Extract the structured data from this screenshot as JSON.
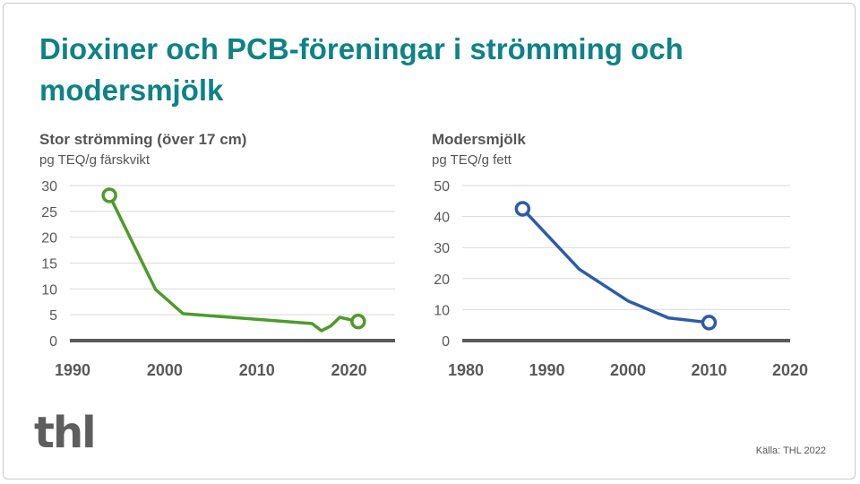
{
  "title": "Dioxiner och PCB-föreningar i strömming och modersmjölk",
  "source": "Källa: THL 2022",
  "logo_text": "thl",
  "chart_data": [
    {
      "type": "line",
      "title": "Stor strömming (över 17 cm)",
      "ylabel": "pg TEQ/g färskvikt",
      "color": "#4e9a2a",
      "xlim": [
        1990,
        2025
      ],
      "ylim": [
        0,
        30
      ],
      "xticks": [
        1990,
        2000,
        2010,
        2020
      ],
      "yticks": [
        0,
        5,
        10,
        15,
        20,
        25,
        30
      ],
      "grid": true,
      "x": [
        1994,
        1999,
        2002,
        2016,
        2017,
        2018,
        2019,
        2021
      ],
      "y": [
        28.1,
        9.9,
        5.2,
        3.3,
        1.9,
        2.8,
        4.5,
        3.7
      ],
      "markers": "first-last"
    },
    {
      "type": "line",
      "title": "Modersmjölk",
      "ylabel": "pg TEQ/g fett",
      "color": "#2c5ca8",
      "xlim": [
        1980,
        2020
      ],
      "ylim": [
        0,
        50
      ],
      "xticks": [
        1980,
        1990,
        2000,
        2010,
        2020
      ],
      "yticks": [
        0,
        10,
        20,
        30,
        40,
        50
      ],
      "grid": true,
      "x": [
        1987,
        1994,
        2000,
        2005,
        2010
      ],
      "y": [
        42.5,
        23,
        12.8,
        7.3,
        5.8
      ],
      "markers": "first-last"
    }
  ]
}
